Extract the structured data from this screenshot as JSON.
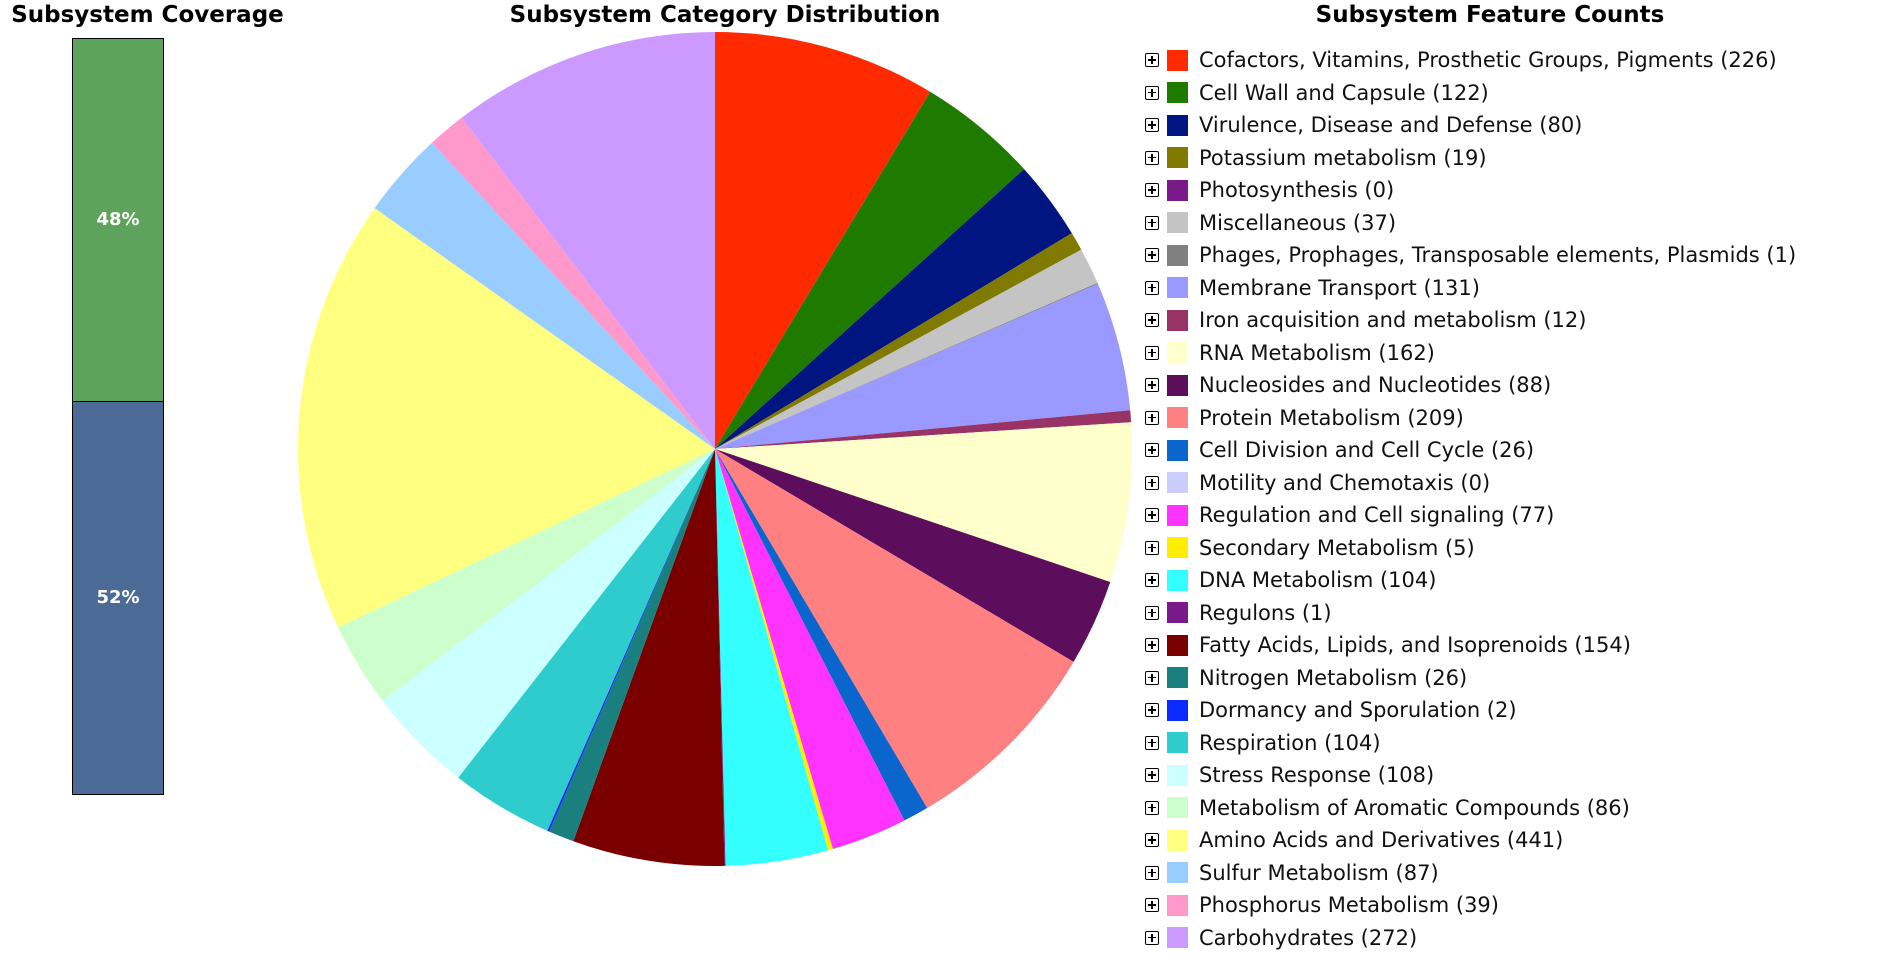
{
  "chart_data": [
    {
      "type": "bar",
      "title": "Subsystem Coverage",
      "stacked": true,
      "segments": [
        {
          "label": "48%",
          "value": 48,
          "color": "#5ea35b"
        },
        {
          "label": "52%",
          "value": 52,
          "color": "#4b6b96"
        }
      ]
    },
    {
      "type": "pie",
      "title": "Subsystem Category Distribution",
      "legend_title": "Subsystem Feature Counts",
      "legend_position": "right",
      "slices": [
        {
          "name": "Cofactors, Vitamins, Prosthetic Groups, Pigments",
          "value": 226,
          "color": "#ff2a00"
        },
        {
          "name": "Cell Wall and Capsule",
          "value": 122,
          "color": "#1e7b00"
        },
        {
          "name": "Virulence, Disease and Defense",
          "value": 80,
          "color": "#001580"
        },
        {
          "name": "Potassium metabolism",
          "value": 19,
          "color": "#807a00"
        },
        {
          "name": "Photosynthesis",
          "value": 0,
          "color": "#7a1a8a"
        },
        {
          "name": "Miscellaneous",
          "value": 37,
          "color": "#c4c4c4"
        },
        {
          "name": "Phages, Prophages, Transposable elements, Plasmids",
          "value": 1,
          "color": "#808080"
        },
        {
          "name": "Membrane Transport",
          "value": 131,
          "color": "#9999ff"
        },
        {
          "name": "Iron acquisition and metabolism",
          "value": 12,
          "color": "#993366"
        },
        {
          "name": "RNA Metabolism",
          "value": 162,
          "color": "#ffffcc"
        },
        {
          "name": "Nucleosides and Nucleotides",
          "value": 88,
          "color": "#5c0e5c"
        },
        {
          "name": "Protein Metabolism",
          "value": 209,
          "color": "#ff8080"
        },
        {
          "name": "Cell Division and Cell Cycle",
          "value": 26,
          "color": "#0a66cc"
        },
        {
          "name": "Motility and Chemotaxis",
          "value": 0,
          "color": "#ccccff"
        },
        {
          "name": "Regulation and Cell signaling",
          "value": 77,
          "color": "#ff33ff"
        },
        {
          "name": "Secondary Metabolism",
          "value": 5,
          "color": "#ffee00"
        },
        {
          "name": "DNA Metabolism",
          "value": 104,
          "color": "#33ffff"
        },
        {
          "name": "Regulons",
          "value": 1,
          "color": "#7a1a8a"
        },
        {
          "name": "Fatty Acids, Lipids, and Isoprenoids",
          "value": 154,
          "color": "#7a0000"
        },
        {
          "name": "Nitrogen Metabolism",
          "value": 26,
          "color": "#1a7f7f"
        },
        {
          "name": "Dormancy and Sporulation",
          "value": 2,
          "color": "#0a2aff"
        },
        {
          "name": "Respiration",
          "value": 104,
          "color": "#2ecccc"
        },
        {
          "name": "Stress Response",
          "value": 108,
          "color": "#ccffff"
        },
        {
          "name": "Metabolism of Aromatic Compounds",
          "value": 86,
          "color": "#ccffcc"
        },
        {
          "name": "Amino Acids and Derivatives",
          "value": 441,
          "color": "#ffff80"
        },
        {
          "name": "Sulfur Metabolism",
          "value": 87,
          "color": "#99ccff"
        },
        {
          "name": "Phosphorus Metabolism",
          "value": 39,
          "color": "#ff99cc"
        },
        {
          "name": "Carbohydrates",
          "value": 272,
          "color": "#cc99ff"
        }
      ]
    }
  ]
}
